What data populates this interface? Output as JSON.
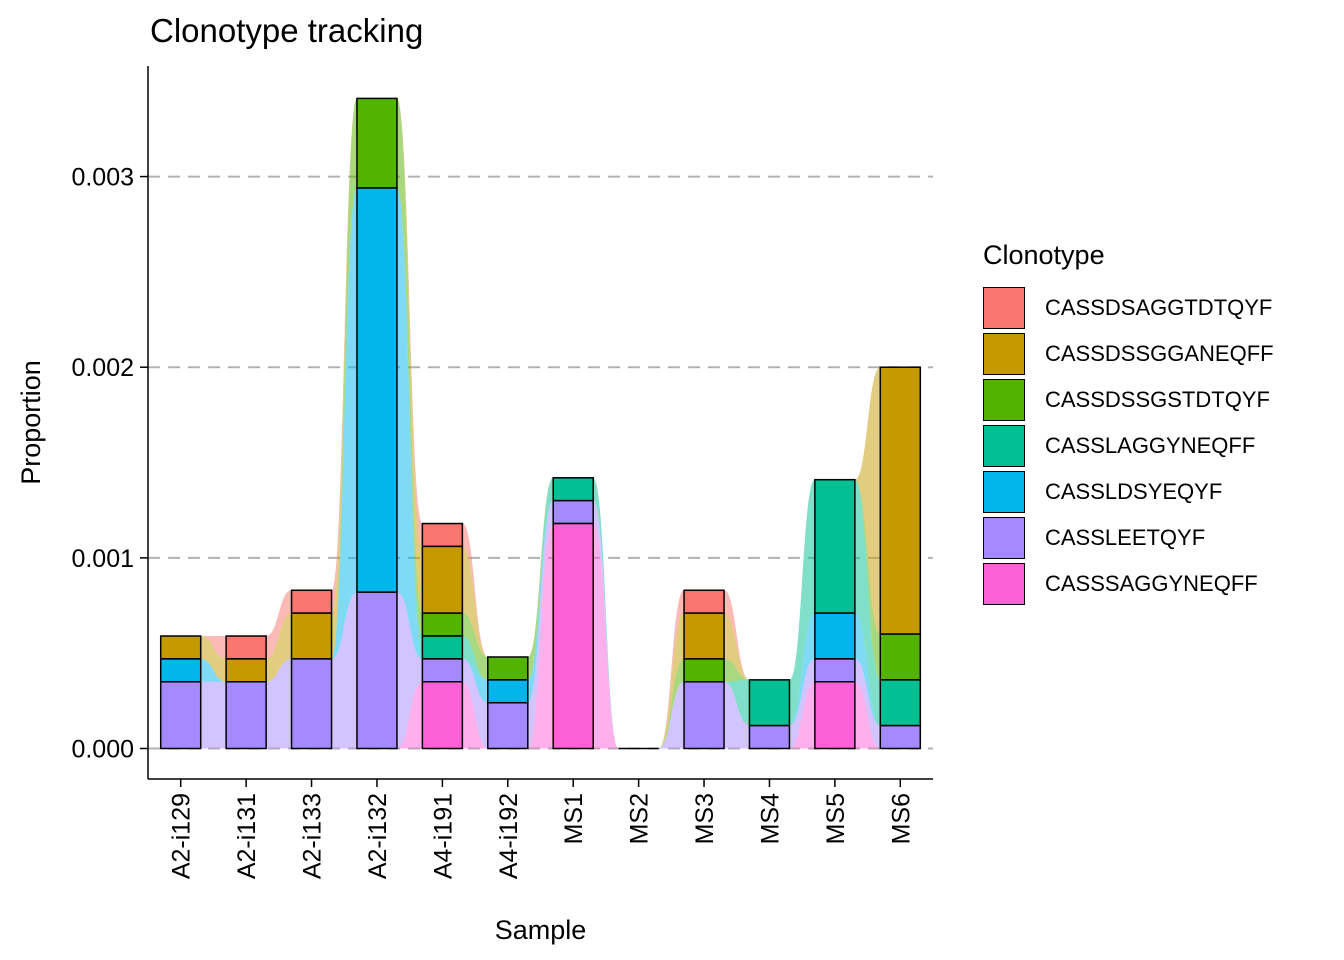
{
  "chart_data": {
    "type": "bar",
    "title": "Clonotype tracking",
    "xlabel": "Sample",
    "ylabel": "Proportion",
    "ylim": [
      -0.00016,
      0.00358
    ],
    "yticks": [
      0,
      0.001,
      0.002,
      0.003
    ],
    "ytick_labels": [
      "0.000",
      "0.001",
      "0.002",
      "0.003"
    ],
    "grid": "horizontal dashed",
    "legend": {
      "title": "Clonotype",
      "position": "right"
    },
    "categories": [
      "A2-i129",
      "A2-i131",
      "A2-i133",
      "A2-i132",
      "A4-i191",
      "A4-i192",
      "MS1",
      "MS2",
      "MS3",
      "MS4",
      "MS5",
      "MS6"
    ],
    "series": [
      {
        "name": "CASSDSAGGTDTQYF",
        "color": "#F8766D",
        "values": [
          0,
          0.00012,
          0.00012,
          0,
          0.00012,
          0,
          0,
          0,
          0.00012,
          0,
          0,
          0
        ]
      },
      {
        "name": "CASSDSSGGANEQFF",
        "color": "#C49A00",
        "values": [
          0.00012,
          0.00012,
          0.00024,
          0,
          0.00035,
          0,
          0,
          0,
          0.00024,
          0,
          0,
          0.0014
        ]
      },
      {
        "name": "CASSDSSGSTDTQYF",
        "color": "#53B400",
        "values": [
          0,
          0,
          0,
          0.00047,
          0.00012,
          0.00012,
          0,
          0,
          0.00012,
          0,
          0,
          0.00024
        ]
      },
      {
        "name": "CASSLAGGYNEQFF",
        "color": "#00C094",
        "values": [
          0,
          0,
          0,
          0,
          0.00012,
          0,
          0.00012,
          0,
          0,
          0.00024,
          0.0007,
          0.00024
        ]
      },
      {
        "name": "CASSLDSYEQYF",
        "color": "#00B6EB",
        "values": [
          0.00012,
          0,
          0,
          0.00212,
          0,
          0.00012,
          0,
          0,
          0,
          0,
          0.00024,
          0
        ]
      },
      {
        "name": "CASSLEETQYF",
        "color": "#A58AFF",
        "values": [
          0.00035,
          0.00035,
          0.00047,
          0.00082,
          0.00012,
          0.00024,
          0.00012,
          0,
          0.00035,
          0.00012,
          0.00012,
          0.00012
        ]
      },
      {
        "name": "CASSSAGGYNEQFF",
        "color": "#FB61D7",
        "values": [
          0,
          0,
          0,
          0,
          0.00035,
          0,
          0.00118,
          0,
          0,
          0,
          0.00035,
          0
        ]
      }
    ]
  }
}
